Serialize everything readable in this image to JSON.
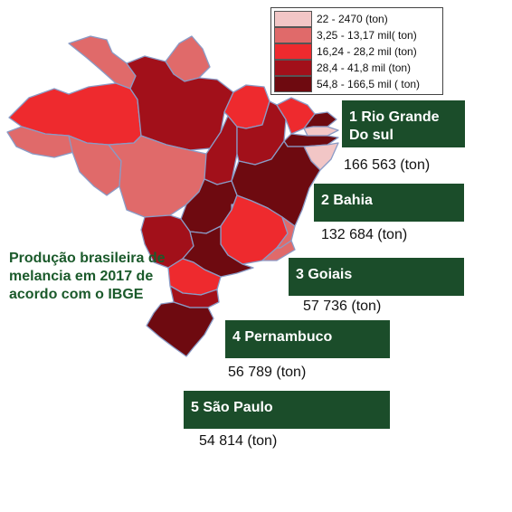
{
  "legend": {
    "items": [
      {
        "label": "22  -  2470 (ton)",
        "color": "#f2c6c6"
      },
      {
        "label": "3,25  - 13,17 mil( ton)",
        "color": "#e06a6a"
      },
      {
        "label": "16,24 - 28,2 mil (ton)",
        "color": "#ee2a2e"
      },
      {
        "label": "28,4 - 41,8 mil (ton)",
        "color": "#a2101a"
      },
      {
        "label": "54,8 - 166,5 mil ( ton)",
        "color": "#6e0a10"
      }
    ]
  },
  "caption": "Produção brasileira de melancia em 2017 de acordo com o IBGE",
  "ranking": [
    {
      "label": "1 Rio Grande Do sul",
      "value": "166 563 (ton)"
    },
    {
      "label": "2 Bahia",
      "value": "132 684 (ton)"
    },
    {
      "label": "3 Goiais",
      "value": "57 736 (ton)"
    },
    {
      "label": "4 Pernambuco",
      "value": "56 789 (ton)"
    },
    {
      "label": "5 São Paulo",
      "value": "54 814 (ton)"
    }
  ]
}
